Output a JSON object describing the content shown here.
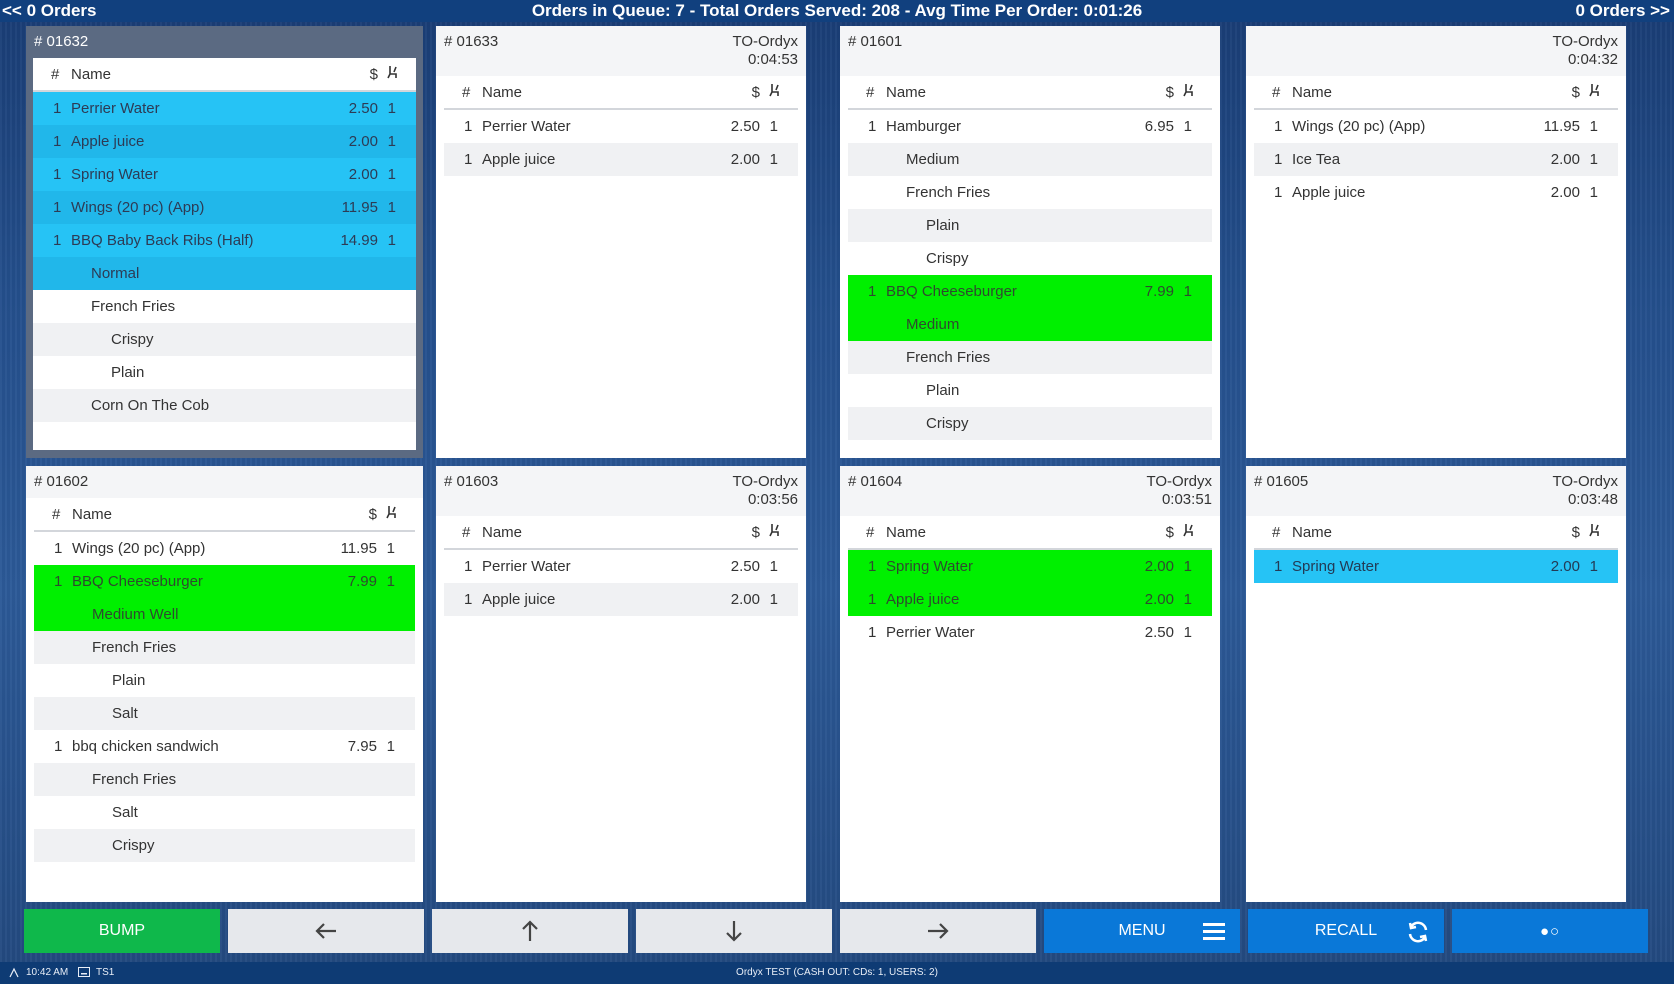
{
  "topbar": {
    "left": "<< 0 Orders",
    "center": "Orders in Queue: 7 - Total Orders Served: 208 - Avg Time Per Order: 0:01:26",
    "right": "0 Orders >>"
  },
  "columns": {
    "num": "#",
    "name": "Name",
    "price": "$",
    "seat": "seat-icon"
  },
  "colors": {
    "highlight_blue": "#26c3f5",
    "highlight_green": "#00f000",
    "bump": "#0fb84b",
    "accent": "#0a78d8"
  },
  "orders": [
    {
      "id": "# 01632",
      "type": "",
      "time": "",
      "items": [
        {
          "qty": "1",
          "name": "Perrier Water",
          "price": "2.50",
          "seat": "1",
          "level": 0,
          "hl": "blue"
        },
        {
          "qty": "1",
          "name": "Apple juice",
          "price": "2.00",
          "seat": "1",
          "level": 0,
          "hl": "blue"
        },
        {
          "qty": "1",
          "name": "Spring Water",
          "price": "2.00",
          "seat": "1",
          "level": 0,
          "hl": "blue"
        },
        {
          "qty": "1",
          "name": "Wings (20 pc) (App)",
          "price": "11.95",
          "seat": "1",
          "level": 0,
          "hl": "blue"
        },
        {
          "qty": "1",
          "name": "BBQ Baby Back Ribs (Half)",
          "price": "14.99",
          "seat": "1",
          "level": 0,
          "hl": "blue"
        },
        {
          "qty": "",
          "name": "Normal",
          "price": "",
          "seat": "",
          "level": 1,
          "hl": "blue"
        },
        {
          "qty": "",
          "name": "French Fries",
          "price": "",
          "seat": "",
          "level": 1,
          "hl": ""
        },
        {
          "qty": "",
          "name": "Crispy",
          "price": "",
          "seat": "",
          "level": 2,
          "hl": ""
        },
        {
          "qty": "",
          "name": "Plain",
          "price": "",
          "seat": "",
          "level": 2,
          "hl": ""
        },
        {
          "qty": "",
          "name": "Corn On The Cob",
          "price": "",
          "seat": "",
          "level": 1,
          "hl": ""
        }
      ]
    },
    {
      "id": "# 01633",
      "type": "TO-Ordyx",
      "time": "0:04:53",
      "items": [
        {
          "qty": "1",
          "name": "Perrier Water",
          "price": "2.50",
          "seat": "1",
          "level": 0,
          "hl": ""
        },
        {
          "qty": "1",
          "name": "Apple juice",
          "price": "2.00",
          "seat": "1",
          "level": 0,
          "hl": ""
        }
      ]
    },
    {
      "id": "# 01601",
      "type": "TO-Ordyx",
      "time": "0:04:32",
      "items": [
        {
          "qty": "1",
          "name": "Hamburger",
          "price": "6.95",
          "seat": "1",
          "level": 0,
          "hl": ""
        },
        {
          "qty": "",
          "name": "Medium",
          "price": "",
          "seat": "",
          "level": 1,
          "hl": ""
        },
        {
          "qty": "",
          "name": "French Fries",
          "price": "",
          "seat": "",
          "level": 1,
          "hl": ""
        },
        {
          "qty": "",
          "name": "Plain",
          "price": "",
          "seat": "",
          "level": 2,
          "hl": ""
        },
        {
          "qty": "",
          "name": "Crispy",
          "price": "",
          "seat": "",
          "level": 2,
          "hl": ""
        },
        {
          "qty": "1",
          "name": "BBQ Cheeseburger",
          "price": "7.99",
          "seat": "1",
          "level": 0,
          "hl": "green"
        },
        {
          "qty": "",
          "name": "Medium",
          "price": "",
          "seat": "",
          "level": 1,
          "hl": "green"
        },
        {
          "qty": "",
          "name": "French Fries",
          "price": "",
          "seat": "",
          "level": 1,
          "hl": ""
        },
        {
          "qty": "",
          "name": "Plain",
          "price": "",
          "seat": "",
          "level": 2,
          "hl": ""
        },
        {
          "qty": "",
          "name": "Crispy",
          "price": "",
          "seat": "",
          "level": 2,
          "hl": ""
        }
      ],
      "items2": [
        {
          "qty": "1",
          "name": "Wings (20 pc) (App)",
          "price": "11.95",
          "seat": "1",
          "level": 0,
          "hl": ""
        },
        {
          "qty": "1",
          "name": "Ice Tea",
          "price": "2.00",
          "seat": "1",
          "level": 0,
          "hl": ""
        },
        {
          "qty": "1",
          "name": "Apple juice",
          "price": "2.00",
          "seat": "1",
          "level": 0,
          "hl": ""
        }
      ]
    },
    {
      "id": "# 01602",
      "type": "",
      "time": "",
      "items": [
        {
          "qty": "1",
          "name": "Wings (20 pc) (App)",
          "price": "11.95",
          "seat": "1",
          "level": 0,
          "hl": ""
        },
        {
          "qty": "1",
          "name": "BBQ Cheeseburger",
          "price": "7.99",
          "seat": "1",
          "level": 0,
          "hl": "green"
        },
        {
          "qty": "",
          "name": "Medium Well",
          "price": "",
          "seat": "",
          "level": 1,
          "hl": "green"
        },
        {
          "qty": "",
          "name": "French Fries",
          "price": "",
          "seat": "",
          "level": 1,
          "hl": ""
        },
        {
          "qty": "",
          "name": "Plain",
          "price": "",
          "seat": "",
          "level": 2,
          "hl": ""
        },
        {
          "qty": "",
          "name": "Salt",
          "price": "",
          "seat": "",
          "level": 2,
          "hl": ""
        },
        {
          "qty": "1",
          "name": "bbq chicken sandwich",
          "price": "7.95",
          "seat": "1",
          "level": 0,
          "hl": ""
        },
        {
          "qty": "",
          "name": "French Fries",
          "price": "",
          "seat": "",
          "level": 1,
          "hl": ""
        },
        {
          "qty": "",
          "name": "Salt",
          "price": "",
          "seat": "",
          "level": 2,
          "hl": ""
        },
        {
          "qty": "",
          "name": "Crispy",
          "price": "",
          "seat": "",
          "level": 2,
          "hl": ""
        }
      ]
    },
    {
      "id": "# 01603",
      "type": "TO-Ordyx",
      "time": "0:03:56",
      "items": [
        {
          "qty": "1",
          "name": "Perrier Water",
          "price": "2.50",
          "seat": "1",
          "level": 0,
          "hl": ""
        },
        {
          "qty": "1",
          "name": "Apple juice",
          "price": "2.00",
          "seat": "1",
          "level": 0,
          "hl": ""
        }
      ]
    },
    {
      "id": "# 01604",
      "type": "TO-Ordyx",
      "time": "0:03:51",
      "items": [
        {
          "qty": "1",
          "name": "Spring Water",
          "price": "2.00",
          "seat": "1",
          "level": 0,
          "hl": "green"
        },
        {
          "qty": "1",
          "name": "Apple juice",
          "price": "2.00",
          "seat": "1",
          "level": 0,
          "hl": "green"
        },
        {
          "qty": "1",
          "name": "Perrier Water",
          "price": "2.50",
          "seat": "1",
          "level": 0,
          "hl": ""
        }
      ]
    },
    {
      "id": "# 01605",
      "type": "TO-Ordyx",
      "time": "0:03:48",
      "items": [
        {
          "qty": "1",
          "name": "Spring Water",
          "price": "2.00",
          "seat": "1",
          "level": 0,
          "hl": "blue"
        }
      ]
    }
  ],
  "buttons": {
    "bump": "BUMP",
    "left": "←",
    "up": "↑",
    "down": "↓",
    "right": "→",
    "menu": "MENU",
    "recall": "RECALL",
    "pager": "●○"
  },
  "status": {
    "time": "10:42 AM",
    "terminal": "TS1",
    "center": "Ordyx TEST (CASH OUT: CDs: 1, USERS: 2)"
  }
}
